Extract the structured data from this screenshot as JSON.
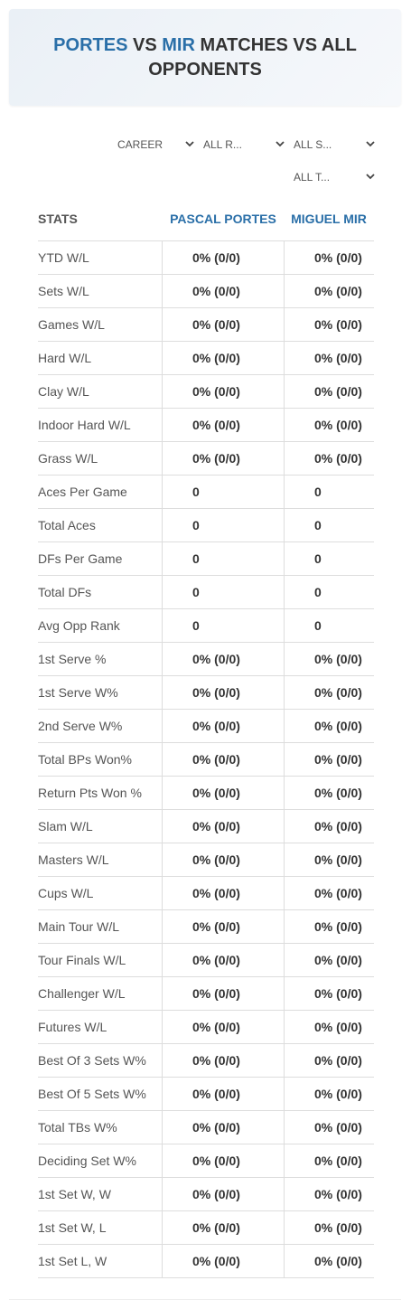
{
  "header": {
    "player1": "PORTES",
    "vs": "VS",
    "player2": "MIR",
    "rest": "MATCHES VS ALL OPPONENTS"
  },
  "filters": [
    "CAREER",
    "ALL R...",
    "ALL S...",
    "ALL T..."
  ],
  "table": {
    "columns": [
      "STATS",
      "PASCAL PORTES",
      "MIGUEL MIR"
    ],
    "rows": [
      [
        "YTD W/L",
        "0% (0/0)",
        "0% (0/0)"
      ],
      [
        "Sets W/L",
        "0% (0/0)",
        "0% (0/0)"
      ],
      [
        "Games W/L",
        "0% (0/0)",
        "0% (0/0)"
      ],
      [
        "Hard W/L",
        "0% (0/0)",
        "0% (0/0)"
      ],
      [
        "Clay W/L",
        "0% (0/0)",
        "0% (0/0)"
      ],
      [
        "Indoor Hard W/L",
        "0% (0/0)",
        "0% (0/0)"
      ],
      [
        "Grass W/L",
        "0% (0/0)",
        "0% (0/0)"
      ],
      [
        "Aces Per Game",
        "0",
        "0"
      ],
      [
        "Total Aces",
        "0",
        "0"
      ],
      [
        "DFs Per Game",
        "0",
        "0"
      ],
      [
        "Total DFs",
        "0",
        "0"
      ],
      [
        "Avg Opp Rank",
        "0",
        "0"
      ],
      [
        "1st Serve %",
        "0% (0/0)",
        "0% (0/0)"
      ],
      [
        "1st Serve W%",
        "0% (0/0)",
        "0% (0/0)"
      ],
      [
        "2nd Serve W%",
        "0% (0/0)",
        "0% (0/0)"
      ],
      [
        "Total BPs Won%",
        "0% (0/0)",
        "0% (0/0)"
      ],
      [
        "Return Pts Won %",
        "0% (0/0)",
        "0% (0/0)"
      ],
      [
        "Slam W/L",
        "0% (0/0)",
        "0% (0/0)"
      ],
      [
        "Masters W/L",
        "0% (0/0)",
        "0% (0/0)"
      ],
      [
        "Cups W/L",
        "0% (0/0)",
        "0% (0/0)"
      ],
      [
        "Main Tour W/L",
        "0% (0/0)",
        "0% (0/0)"
      ],
      [
        "Tour Finals W/L",
        "0% (0/0)",
        "0% (0/0)"
      ],
      [
        "Challenger W/L",
        "0% (0/0)",
        "0% (0/0)"
      ],
      [
        "Futures W/L",
        "0% (0/0)",
        "0% (0/0)"
      ],
      [
        "Best Of 3 Sets W%",
        "0% (0/0)",
        "0% (0/0)"
      ],
      [
        "Best Of 5 Sets W%",
        "0% (0/0)",
        "0% (0/0)"
      ],
      [
        "Total TBs W%",
        "0% (0/0)",
        "0% (0/0)"
      ],
      [
        "Deciding Set W%",
        "0% (0/0)",
        "0% (0/0)"
      ],
      [
        "1st Set W, W",
        "0% (0/0)",
        "0% (0/0)"
      ],
      [
        "1st Set W, L",
        "0% (0/0)",
        "0% (0/0)"
      ],
      [
        "1st Set L, W",
        "0% (0/0)",
        "0% (0/0)"
      ]
    ]
  }
}
